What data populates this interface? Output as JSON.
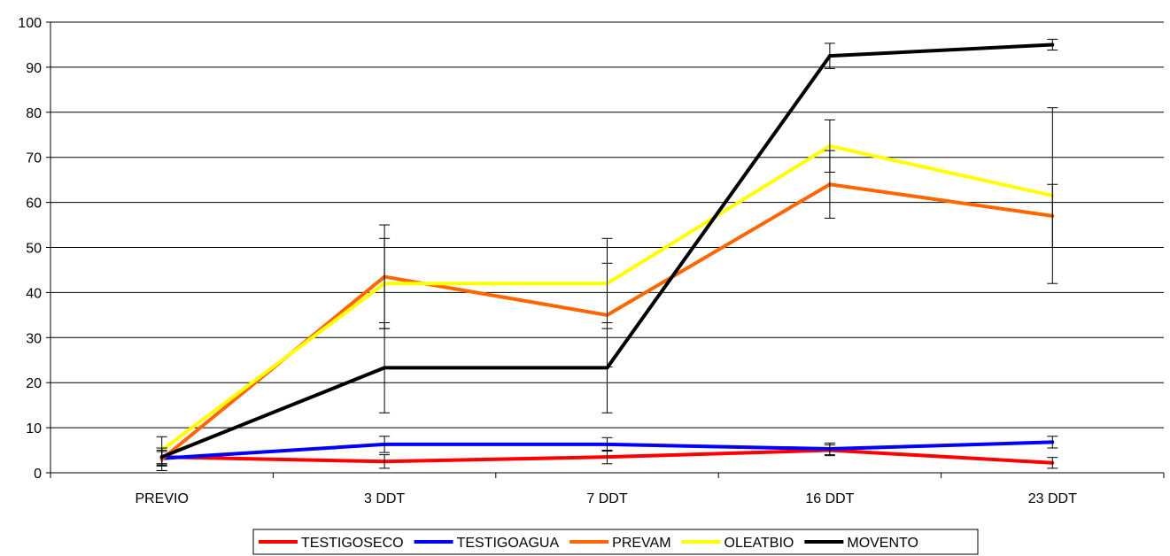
{
  "chart_data": {
    "type": "line",
    "title": "",
    "xlabel": "",
    "ylabel": "",
    "categories": [
      "PREVIO",
      "3 DDT",
      "7 DDT",
      "16 DDT",
      "23 DDT"
    ],
    "ylim": [
      0,
      100
    ],
    "yticks": [
      0,
      10,
      20,
      30,
      40,
      50,
      60,
      70,
      80,
      90,
      100
    ],
    "grid": "horizontal",
    "legend_position": "bottom",
    "series": [
      {
        "name": "TESTIGOSECO",
        "color": "#ff0000",
        "values": [
          3.5,
          2.5,
          3.5,
          5,
          2.2
        ],
        "error": [
          1.5,
          1.5,
          1.5,
          1.2,
          1.2
        ]
      },
      {
        "name": "TESTIGOAGUA",
        "color": "#0000ff",
        "values": [
          3.2,
          6.3,
          6.3,
          5.3,
          6.8
        ],
        "error": [
          1.5,
          1.8,
          1.5,
          1.3,
          1.3
        ]
      },
      {
        "name": "PREVAM",
        "color": "#ff6600",
        "values": [
          3,
          43.5,
          35,
          64,
          57
        ],
        "error": [
          2.5,
          11.5,
          11.5,
          7.5,
          7
        ]
      },
      {
        "name": "OLEATBIO",
        "color": "#ffff00",
        "values": [
          5,
          42,
          42,
          72.5,
          61.5
        ],
        "error": [
          3,
          10,
          10,
          5.8,
          19.5
        ]
      },
      {
        "name": "MOVENTO",
        "color": "#000000",
        "values": [
          3.5,
          23.3,
          23.3,
          92.5,
          95
        ],
        "error": [
          2,
          10,
          10,
          2.8,
          1.2
        ]
      }
    ]
  }
}
